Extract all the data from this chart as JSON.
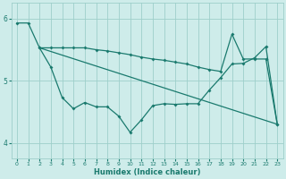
{
  "xlabel": "Humidex (Indice chaleur)",
  "bg_color": "#ceecea",
  "grid_color": "#9ecfca",
  "line_color": "#1a7a6e",
  "xlim": [
    -0.5,
    23.5
  ],
  "ylim": [
    3.75,
    6.25
  ],
  "yticks": [
    4,
    5,
    6
  ],
  "xticks": [
    0,
    1,
    2,
    3,
    4,
    5,
    6,
    7,
    8,
    9,
    10,
    11,
    12,
    13,
    14,
    15,
    16,
    17,
    18,
    19,
    20,
    21,
    22,
    23
  ],
  "line1_x": [
    0,
    1,
    2,
    3,
    4,
    5,
    6,
    7,
    8,
    9,
    10,
    11,
    12,
    13,
    14,
    15,
    16,
    17,
    18,
    19,
    20,
    21,
    22,
    23
  ],
  "line1_y": [
    5.93,
    5.93,
    5.53,
    5.22,
    4.73,
    4.55,
    4.65,
    4.58,
    4.58,
    4.43,
    4.17,
    4.37,
    4.6,
    4.63,
    4.62,
    4.63,
    4.63,
    4.85,
    5.05,
    5.27,
    5.28,
    5.37,
    5.55,
    4.3
  ],
  "line2_x": [
    2,
    3,
    4,
    5,
    6,
    7,
    8,
    9,
    10,
    11,
    12,
    13,
    14,
    15,
    16,
    17,
    18,
    19,
    20,
    21,
    22,
    23
  ],
  "line2_y": [
    5.53,
    5.53,
    5.53,
    5.53,
    5.53,
    5.5,
    5.48,
    5.45,
    5.42,
    5.38,
    5.35,
    5.33,
    5.3,
    5.27,
    5.22,
    5.18,
    5.15,
    5.75,
    5.35,
    5.35,
    5.35,
    4.3
  ],
  "line3_x": [
    2,
    23
  ],
  "line3_y": [
    5.53,
    4.3
  ]
}
